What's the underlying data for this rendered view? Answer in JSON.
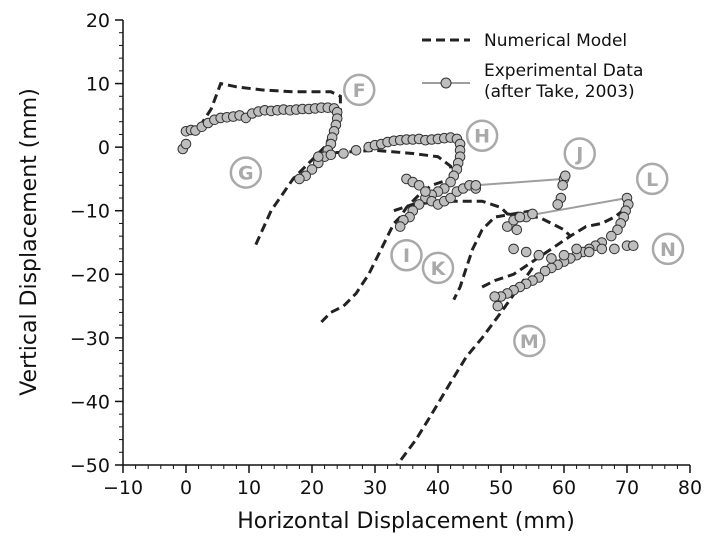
{
  "chart_data": {
    "type": "line",
    "xlabel": "Horizontal Displacement (mm)",
    "ylabel": "Vertical Displacement (mm)",
    "xlim": [
      -10,
      80
    ],
    "ylim": [
      -50,
      20
    ],
    "xticks": [
      -10,
      0,
      10,
      20,
      30,
      40,
      50,
      60,
      70,
      80
    ],
    "yticks": [
      -50,
      -40,
      -30,
      -20,
      -10,
      0,
      10,
      20
    ],
    "xtick_labels": [
      "−10",
      "0",
      "10",
      "20",
      "30",
      "40",
      "50",
      "60",
      "70",
      "80"
    ],
    "ytick_labels": [
      "−50",
      "−40",
      "−30",
      "−20",
      "−10",
      "0",
      "10",
      "20"
    ],
    "grid": false,
    "legend_position": "top-right",
    "series": [
      {
        "name": "Numerical Model",
        "style": "dashed",
        "color": "#222222",
        "segments": [
          [
            [
              0,
              3
            ],
            [
              2,
              3
            ],
            [
              4,
              6
            ],
            [
              5.5,
              10
            ],
            [
              8,
              9.5
            ],
            [
              12,
              9
            ],
            [
              17,
              8.7
            ],
            [
              23,
              8.7
            ],
            [
              24.5,
              8
            ],
            [
              24.5,
              5
            ],
            [
              23,
              2
            ],
            [
              22,
              0
            ],
            [
              20,
              -2
            ],
            [
              17,
              -5
            ],
            [
              13.5,
              -10
            ],
            [
              11,
              -15.5
            ]
          ],
          [
            [
              21.5,
              -1
            ],
            [
              30,
              -0.5
            ],
            [
              36,
              -1
            ],
            [
              40,
              -1.5
            ],
            [
              42,
              -3
            ],
            [
              42,
              -5
            ],
            [
              39,
              -6
            ],
            [
              37,
              -7.5
            ],
            [
              35,
              -9.5
            ],
            [
              34,
              -11
            ],
            [
              33,
              -12
            ],
            [
              31,
              -16
            ],
            [
              29,
              -20
            ],
            [
              27,
              -23
            ],
            [
              25,
              -25
            ],
            [
              23,
              -26
            ],
            [
              21.5,
              -27.5
            ]
          ],
          [
            [
              33,
              -10
            ],
            [
              36,
              -9
            ],
            [
              41,
              -8.5
            ],
            [
              47,
              -8.5
            ],
            [
              50,
              -9.5
            ],
            [
              51,
              -10.5
            ],
            [
              54,
              -11
            ],
            [
              56,
              -11
            ],
            [
              58,
              -12
            ],
            [
              60,
              -13
            ],
            [
              61,
              -14
            ]
          ],
          [
            [
              55,
              -10
            ],
            [
              52,
              -10.5
            ],
            [
              49,
              -11
            ],
            [
              47,
              -13
            ],
            [
              45.5,
              -16
            ],
            [
              44.5,
              -19
            ],
            [
              43.5,
              -22
            ],
            [
              42.5,
              -24
            ]
          ],
          [
            [
              47,
              -22
            ],
            [
              49,
              -21
            ],
            [
              52,
              -20
            ],
            [
              55,
              -18
            ],
            [
              58,
              -16
            ],
            [
              61,
              -14
            ],
            [
              63.5,
              -12.5
            ],
            [
              66,
              -12
            ],
            [
              68,
              -11
            ],
            [
              70,
              -9.5
            ]
          ],
          [
            [
              55,
              -19
            ],
            [
              50,
              -26
            ],
            [
              47,
              -30
            ],
            [
              44.5,
              -33
            ],
            [
              42,
              -37
            ],
            [
              39,
              -42
            ],
            [
              36.5,
              -46
            ],
            [
              33.5,
              -50
            ]
          ]
        ]
      },
      {
        "name": "Experimental Data\n(after Take, 2003)",
        "style": "markers",
        "marker_fill": "#bebebe",
        "marker_edge": "#333333",
        "line_color": "#9e9e9e",
        "points": [
          [
            -0.5,
            -0.3
          ],
          [
            0,
            0.5
          ],
          [
            0,
            2.5
          ],
          [
            0.8,
            2.7
          ],
          [
            1.5,
            2.6
          ],
          [
            2.5,
            3.2
          ],
          [
            3.5,
            3.8
          ],
          [
            4.5,
            4.3
          ],
          [
            5.5,
            4.6
          ],
          [
            6.5,
            4.7
          ],
          [
            7.5,
            4.8
          ],
          [
            8.5,
            5
          ],
          [
            9.5,
            4.6
          ],
          [
            10.5,
            5.3
          ],
          [
            11.5,
            5.6
          ],
          [
            12.5,
            5.8
          ],
          [
            13.5,
            5.7
          ],
          [
            14.5,
            5.8
          ],
          [
            15.5,
            5.9
          ],
          [
            16.5,
            5.8
          ],
          [
            17.5,
            5.9
          ],
          [
            18.5,
            6
          ],
          [
            19.5,
            6
          ],
          [
            20.5,
            6.1
          ],
          [
            21.5,
            6.2
          ],
          [
            22.5,
            6.2
          ],
          [
            23.5,
            6.1
          ],
          [
            24,
            5.5
          ],
          [
            24,
            4.5
          ],
          [
            23.8,
            3.5
          ],
          [
            23.5,
            2.5
          ],
          [
            23.2,
            1.5
          ],
          [
            23,
            0.5
          ],
          [
            22.5,
            -0.5
          ],
          [
            22,
            -1.5
          ],
          [
            21,
            -2.5
          ],
          [
            20,
            -3.5
          ],
          [
            19,
            -4.5
          ],
          [
            18,
            -5
          ],
          [
            21,
            -1.5
          ],
          [
            23,
            -1.2
          ],
          [
            25,
            -1
          ],
          [
            27,
            -0.5
          ],
          [
            29,
            0
          ],
          [
            30,
            0.3
          ],
          [
            31,
            0.5
          ],
          [
            32,
            0.8
          ],
          [
            33,
            1
          ],
          [
            34,
            1.1
          ],
          [
            35,
            1.2
          ],
          [
            36,
            1.2
          ],
          [
            37,
            1.3
          ],
          [
            38,
            1.1
          ],
          [
            39,
            1.2
          ],
          [
            40,
            1.3
          ],
          [
            41,
            1.4
          ],
          [
            42,
            1.5
          ],
          [
            43,
            1.3
          ],
          [
            43.5,
            0.5
          ],
          [
            43.5,
            -0.5
          ],
          [
            43.5,
            -1.5
          ],
          [
            43.2,
            -2.5
          ],
          [
            43,
            -3.5
          ],
          [
            42.5,
            -4.5
          ],
          [
            42,
            -5.5
          ],
          [
            41,
            -6.5
          ],
          [
            40,
            -7
          ],
          [
            39,
            -7.5
          ],
          [
            38,
            -8
          ],
          [
            37,
            -9
          ],
          [
            36,
            -10
          ],
          [
            35.5,
            -11
          ],
          [
            34.5,
            -11.5
          ],
          [
            34,
            -12.5
          ],
          [
            35,
            -5
          ],
          [
            36,
            -5.5
          ],
          [
            37,
            -6
          ],
          [
            38,
            -7
          ],
          [
            39,
            -8.5
          ],
          [
            40,
            -9
          ],
          [
            41,
            -8.5
          ],
          [
            42,
            -8
          ],
          [
            43,
            -7
          ],
          [
            44,
            -6.5
          ],
          [
            45,
            -6
          ],
          [
            46,
            -6.5
          ],
          [
            46,
            -6
          ],
          [
            60,
            -5
          ],
          [
            60.2,
            -4.5
          ],
          [
            59.8,
            -6
          ],
          [
            59.5,
            -8
          ],
          [
            59,
            -9
          ],
          [
            51,
            -12.5
          ],
          [
            52,
            -11.5
          ],
          [
            53,
            -11
          ],
          [
            54,
            -11
          ],
          [
            55,
            -10.5
          ],
          [
            52.5,
            -13
          ],
          [
            53,
            -11
          ],
          [
            70,
            -8
          ],
          [
            70.2,
            -9
          ],
          [
            69.8,
            -10
          ],
          [
            69.5,
            -11
          ],
          [
            69,
            -12
          ],
          [
            68.5,
            -13
          ],
          [
            67.5,
            -14
          ],
          [
            66,
            -15
          ],
          [
            65,
            -15.5
          ],
          [
            64,
            -16
          ],
          [
            63,
            -16.5
          ],
          [
            62,
            -17
          ],
          [
            61,
            -17.5
          ],
          [
            60,
            -18
          ],
          [
            59,
            -18.5
          ],
          [
            58,
            -19
          ],
          [
            57,
            -19.5
          ],
          [
            56,
            -20.5
          ],
          [
            55,
            -21
          ],
          [
            54,
            -21.5
          ],
          [
            53,
            -22
          ],
          [
            52,
            -22.5
          ],
          [
            51,
            -23
          ],
          [
            50,
            -23.5
          ],
          [
            49,
            -23.5
          ],
          [
            49.5,
            -25
          ],
          [
            52,
            -16
          ],
          [
            54,
            -16.5
          ],
          [
            56,
            -17
          ],
          [
            58,
            -17.5
          ],
          [
            60,
            -17
          ],
          [
            62,
            -16
          ],
          [
            64,
            -16.5
          ],
          [
            66,
            -16
          ],
          [
            68,
            -16
          ],
          [
            70,
            -15.5
          ],
          [
            71,
            -15.5
          ]
        ],
        "lines": [
          [
            [
              46,
              -6
            ],
            [
              60,
              -5
            ]
          ],
          [
            [
              53,
              -11
            ],
            [
              70,
              -8
            ]
          ]
        ]
      }
    ],
    "annotations": [
      {
        "text": "F",
        "x": 27.5,
        "y": 9
      },
      {
        "text": "G",
        "x": 9.5,
        "y": -4
      },
      {
        "text": "H",
        "x": 47,
        "y": 1.8
      },
      {
        "text": "I",
        "x": 35,
        "y": -17
      },
      {
        "text": "J",
        "x": 62.5,
        "y": -1
      },
      {
        "text": "K",
        "x": 40,
        "y": -19
      },
      {
        "text": "L",
        "x": 74,
        "y": -5
      },
      {
        "text": "M",
        "x": 54.5,
        "y": -30.5
      },
      {
        "text": "N",
        "x": 76.5,
        "y": -16
      }
    ]
  }
}
